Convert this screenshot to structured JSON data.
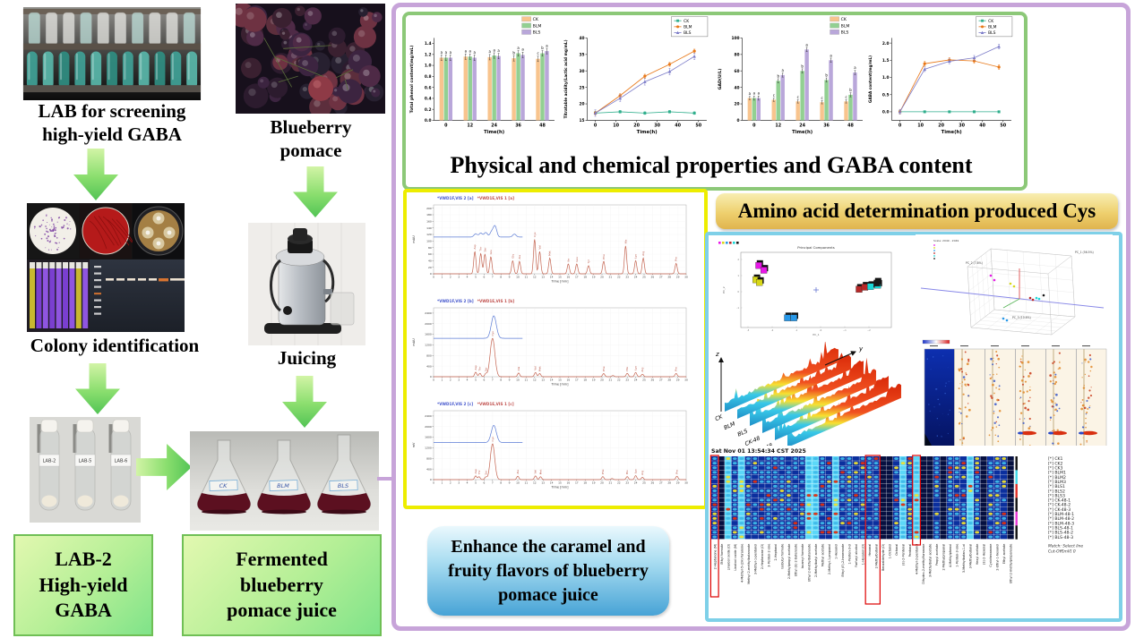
{
  "workflow": {
    "screening_caption": [
      "LAB for screening",
      "high-yield GABA"
    ],
    "colony_caption": "Colony identification",
    "blueberry_caption": [
      "Blueberry",
      "pomace"
    ],
    "juicing_caption": "Juicing",
    "tube_labels": [
      "LAB-2",
      "LAB-5",
      "LAB-6"
    ],
    "flask_labels": [
      "CK",
      "BLM",
      "BLS"
    ],
    "lab2_box": [
      "LAB-2",
      "High-yield",
      "GABA"
    ],
    "fermented_box": [
      "Fermented",
      "blueberry",
      "pomace juice"
    ]
  },
  "banners": {
    "physchem": "Physical and chemical properties and GABA content",
    "amino": "Amino acid determination produced Cys",
    "enhance": [
      "Enhance the caramel and",
      "fruity flavors of blueberry",
      "pomace juice"
    ]
  },
  "colors": {
    "purple_border": "#c7a4d9",
    "green_border": "#8cc878",
    "yellow_border": "#eded00",
    "cyan_border": "#7ed0e8",
    "ck_bar": "#f8c48e",
    "blm_bar": "#92d092",
    "bls_bar": "#b9a7da",
    "ck_line": "#2fae8c",
    "blm_line": "#e87818",
    "bls_line": "#7b7bc8"
  },
  "chart_data": [
    {
      "type": "bar",
      "title": "",
      "ylabel": "Total phenol content(mg/mL)",
      "xlabel": "Time(h)",
      "categories": [
        "0",
        "12",
        "24",
        "36",
        "48"
      ],
      "ylim": [
        0,
        1.5
      ],
      "yticks": [
        0.0,
        0.2,
        0.4,
        0.6,
        0.8,
        1.0,
        1.2,
        1.4
      ],
      "ydec": 1,
      "series": [
        {
          "name": "CK",
          "color": "#f8c48e",
          "err": 0.05,
          "values": [
            1.14,
            1.16,
            1.15,
            1.13,
            1.12
          ],
          "letters": [
            "a",
            "a",
            "a",
            "b",
            "c"
          ]
        },
        {
          "name": "BLM",
          "color": "#92d092",
          "err": 0.05,
          "values": [
            1.14,
            1.16,
            1.18,
            1.22,
            1.22
          ],
          "letters": [
            "a",
            "a",
            "a",
            "a",
            "b"
          ]
        },
        {
          "name": "BLS",
          "color": "#b9a7da",
          "err": 0.05,
          "values": [
            1.14,
            1.14,
            1.17,
            1.19,
            1.26
          ],
          "letters": [
            "a",
            "a",
            "a",
            "a",
            "a"
          ]
        }
      ]
    },
    {
      "type": "line",
      "title": "",
      "ylabel": "Titratable acidity(Lactic acid mg/mL)",
      "xlabel": "Time(h)",
      "x": [
        0,
        12,
        24,
        36,
        48
      ],
      "xlim": [
        -4,
        54
      ],
      "xticks": [
        0,
        10,
        20,
        30,
        40,
        50
      ],
      "ylim": [
        15,
        40
      ],
      "yticks": [
        15,
        20,
        25,
        30,
        35,
        40
      ],
      "ydec": 0,
      "series": [
        {
          "name": "CK",
          "color": "#2fae8c",
          "marker": "square",
          "err": 0.4,
          "values": [
            17.2,
            17.6,
            17.2,
            17.6,
            17.2
          ]
        },
        {
          "name": "BLM",
          "color": "#e87818",
          "marker": "circle",
          "err": 0.6,
          "values": [
            17.2,
            22.5,
            28.4,
            32.0,
            36.0
          ]
        },
        {
          "name": "BLS",
          "color": "#7b7bc8",
          "marker": "triangle",
          "err": 1.0,
          "values": [
            17.2,
            21.7,
            26.7,
            29.8,
            34.4
          ]
        }
      ]
    },
    {
      "type": "bar",
      "title": "",
      "ylabel": "GAD(U/L)",
      "xlabel": "Time(h)",
      "categories": [
        "0",
        "12",
        "24",
        "36",
        "48"
      ],
      "ylim": [
        0,
        100
      ],
      "yticks": [
        0,
        20,
        40,
        60,
        80,
        100
      ],
      "ydec": 0,
      "series": [
        {
          "name": "CK",
          "color": "#f8c48e",
          "err": 2.0,
          "values": [
            27,
            25,
            23,
            22,
            23
          ],
          "letters": [
            "a",
            "c",
            "c",
            "c",
            "c"
          ]
        },
        {
          "name": "BLM",
          "color": "#92d092",
          "err": 2.5,
          "values": [
            27,
            48,
            60,
            49,
            31
          ],
          "letters": [
            "a",
            "b",
            "b",
            "b",
            "b"
          ]
        },
        {
          "name": "BLS",
          "color": "#b9a7da",
          "err": 2.5,
          "values": [
            27,
            55,
            86,
            73,
            58
          ],
          "letters": [
            "a",
            "a",
            "a",
            "a",
            "a"
          ]
        }
      ]
    },
    {
      "type": "line",
      "title": "",
      "ylabel": "GABA content(mg/mL)",
      "xlabel": "Time(h)",
      "x": [
        0,
        12,
        24,
        36,
        48
      ],
      "xlim": [
        -4,
        54
      ],
      "xticks": [
        0,
        10,
        20,
        30,
        40,
        50
      ],
      "ylim": [
        -0.25,
        2.15
      ],
      "yticks": [
        0.0,
        0.5,
        1.0,
        1.5,
        2.0
      ],
      "ydec": 1,
      "series": [
        {
          "name": "CK",
          "color": "#2fae8c",
          "marker": "square",
          "err": 0.03,
          "values": [
            0.0,
            0.0,
            0.0,
            0.0,
            0.0
          ]
        },
        {
          "name": "BLM",
          "color": "#e87818",
          "marker": "circle",
          "err": 0.07,
          "values": [
            0.0,
            1.4,
            1.51,
            1.48,
            1.3
          ]
        },
        {
          "name": "BLS",
          "color": "#7b7bc8",
          "marker": "triangle",
          "err": 0.07,
          "values": [
            0.0,
            1.24,
            1.47,
            1.57,
            1.9
          ]
        }
      ]
    },
    {
      "type": "chrom",
      "tb": "*VWD1F,VIS 2 [a]",
      "tr": "*VWD1E,VIS 1 [a]",
      "ylabel": "mAU",
      "xlabel": "Time [min]",
      "ymax": 210,
      "ystep": 20,
      "base": 112,
      "bend": 10.6,
      "bpk": [
        [
          5.0,
          10
        ],
        [
          5.6,
          12
        ],
        [
          6.2,
          14
        ],
        [
          6.9,
          16
        ],
        [
          7.3,
          33
        ],
        [
          9.6,
          9
        ]
      ],
      "rpk": [
        [
          4.9,
          68,
          "Asp"
        ],
        [
          5.6,
          62,
          "Thr"
        ],
        [
          6.1,
          60,
          "Ser"
        ],
        [
          6.8,
          52,
          "Glu"
        ],
        [
          9.4,
          40,
          "Gly"
        ],
        [
          10.2,
          38,
          "Ala"
        ],
        [
          12.0,
          105,
          "Cys"
        ],
        [
          12.6,
          68,
          "Val"
        ],
        [
          13.8,
          48,
          "Met"
        ],
        [
          16.0,
          30,
          "Ile"
        ],
        [
          17.0,
          30,
          "Leu"
        ],
        [
          18.4,
          25,
          "Tyr"
        ],
        [
          20.2,
          38,
          "Phe"
        ],
        [
          22.8,
          85,
          "His"
        ],
        [
          24.0,
          40,
          "Lys"
        ],
        [
          24.9,
          48,
          "Arg"
        ],
        [
          28.8,
          32,
          "Pro"
        ]
      ]
    },
    {
      "type": "chrom",
      "tb": "*VWD1F,VIS 2 [b]",
      "tr": "*VWD1E,VIS 1 [b]",
      "ylabel": "mAU",
      "xlabel": "Time [min]",
      "ymax": 2600,
      "ystep": 400,
      "base": 1450,
      "bend": 10.6,
      "bpk": [
        [
          7.15,
          850,
          0.3
        ]
      ],
      "rpk": [
        [
          5.0,
          170,
          "Asp"
        ],
        [
          5.5,
          130,
          "Thr"
        ],
        [
          6.2,
          110,
          "Ser"
        ],
        [
          7.0,
          1450,
          "Cys",
          0.28
        ],
        [
          10.1,
          140,
          "Ala"
        ],
        [
          12.1,
          160,
          "Val"
        ],
        [
          12.6,
          120,
          "Met"
        ],
        [
          20.2,
          120,
          "Phe"
        ],
        [
          21.3,
          45,
          ""
        ],
        [
          23.0,
          130,
          "His"
        ],
        [
          24.0,
          160,
          "Lys"
        ],
        [
          24.8,
          95,
          "Arg"
        ],
        [
          28.8,
          125,
          "Pro"
        ]
      ]
    },
    {
      "type": "chrom",
      "tb": "*VWD1F,VIS 2 [c]",
      "tr": "*VWD1E,VIS 1 [c]",
      "ylabel": "mV",
      "xlabel": "Time [min]",
      "ymax": 2600,
      "ystep": 400,
      "base": 1400,
      "bend": 10.6,
      "bpk": [
        [
          7.15,
          650,
          0.3
        ]
      ],
      "rpk": [
        [
          5.0,
          140,
          "Asp"
        ],
        [
          5.4,
          110,
          "Thr"
        ],
        [
          6.2,
          95,
          "Ser"
        ],
        [
          7.0,
          1350,
          "Cys",
          0.26
        ],
        [
          10.0,
          130,
          "Ala"
        ],
        [
          12.1,
          140,
          "Val"
        ],
        [
          12.7,
          110,
          "Met"
        ],
        [
          20.1,
          115,
          "Phe"
        ],
        [
          21.2,
          40,
          ""
        ],
        [
          23.0,
          115,
          "His"
        ],
        [
          24.0,
          150,
          "Lys"
        ],
        [
          24.8,
          85,
          "Arg"
        ],
        [
          28.9,
          130,
          "Pro"
        ]
      ]
    },
    {
      "type": "pca2d",
      "title": "Principal Components",
      "xlabel": "PC_1",
      "ylabel": "PC_2",
      "clusters": [
        {
          "color": "#e818e8",
          "pts": [
            [
              -0.8,
              0.72
            ],
            [
              -0.73,
              0.58
            ]
          ]
        },
        {
          "color": "#d8d818",
          "pts": [
            [
              -0.84,
              0.3
            ],
            [
              -0.79,
              0.22
            ]
          ]
        },
        {
          "color": "#2898e8",
          "pts": [
            [
              -0.4,
              -0.82
            ],
            [
              -0.31,
              -0.82
            ]
          ]
        },
        {
          "color": "#b82828",
          "pts": [
            [
              0.6,
              0.02
            ],
            [
              0.68,
              0.08
            ]
          ]
        },
        {
          "color": "#18d8d8",
          "pts": [
            [
              0.76,
              0.1
            ],
            [
              0.86,
              0.14
            ]
          ]
        },
        {
          "color": "#181818",
          "pts": [
            [
              0.85,
              0.2
            ]
          ]
        }
      ]
    },
    {
      "type": "pca3d",
      "scale_label": "Scale: 2049 - 2049",
      "pc1": "PC_1 (56.5%)",
      "pc2": "PC_2 (7.8%)",
      "pc3": "PC_3 (10.6%)",
      "colors": [
        "#e818e8",
        "#d8d818",
        "#2898e8",
        "#b82828",
        "#18d8d8",
        "#181818"
      ]
    },
    {
      "type": "waterfall",
      "labels": [
        "CK",
        "BLM",
        "BLS",
        "CK-48",
        "BLM-48",
        "BLS-48"
      ],
      "axis_x": "x",
      "axis_y": "y",
      "axis_z": "z"
    },
    {
      "type": "strips"
    },
    {
      "type": "gallery",
      "timestamp": "Sat Nov 01 13:54:34 CST 2025",
      "samples": [
        "CK1",
        "CK2",
        "CK3",
        "BLM1",
        "BLM2",
        "BLM3",
        "BLS1",
        "BLS2",
        "BLS3",
        "CK-48-1",
        "CK-48-2",
        "CK-48-3",
        "BLM-48-1",
        "BLM-48-2",
        "BLM-48-3",
        "BLS-48-1",
        "BLS-48-2",
        "BLS-48-3"
      ],
      "match1": "Match: Select line",
      "match2": "Cut-Off[mV] 0",
      "compounds": [
        "2-Heptanone (M)",
        "Ethyl formate",
        "Linalool oxide (D)",
        "Linalool oxide (M)",
        "4-Methyl-5-(2H)-furanone",
        "Methyl 2-methylbutanoate",
        "3-Methyl-1-pentanol",
        "2-Heptanone (D)",
        "3-Penten-2-one",
        "2-Heptanol",
        "Isobutyl formate",
        "2-Methylpropyl acetate",
        "Ethyl (E)-2-butenoate",
        "Isoamyl formate",
        "Ethyl 2-methylbutanoate",
        "2-Methylbutyl acetate",
        "Methyl acetate",
        "2-Methyl-1-propanol",
        "1-Hexanol",
        "Ethyl (E)-2-hexenoate",
        "1-Penten-3-ol",
        "Furfuryl alcohol",
        "1-Hexanol (D)",
        "Hexanal",
        "2-Methylbutanal",
        "Benzaldehyde (D)",
        "1-Octanol",
        "Octanal",
        "(E)-2-Pentenal",
        "Pentanal",
        "4-Methyl-2-pentanol",
        "Dihydro-2-methylfuranone",
        "3-Methylbutyl acetate",
        "Propyl acetate",
        "2-Methylpropanal",
        "4-Methylphenol",
        "1-Penten-3-one",
        "3-Methylbutan-1-ol",
        "3-Methylbutanal",
        "Hexyl acetate",
        "(E)-2-Hexenal",
        "Cyclohexanone",
        "2-Ethyl-1-hexanol",
        "Ethyl acetate",
        "Ethyl 2-methylpropanoate"
      ]
    }
  ]
}
